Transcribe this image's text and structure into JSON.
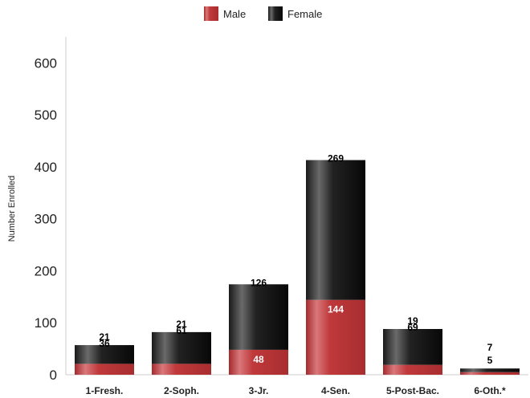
{
  "chart_data": {
    "type": "bar",
    "stacked": true,
    "categories": [
      "1-Fresh.",
      "2-Soph.",
      "3-Jr.",
      "4-Sen.",
      "5-Post-Bac.",
      "6-Oth.*"
    ],
    "series": [
      {
        "name": "Male",
        "values": [
          21,
          21,
          48,
          144,
          19,
          5
        ],
        "color": "#c0393b"
      },
      {
        "name": "Female",
        "values": [
          36,
          61,
          126,
          269,
          69,
          7
        ],
        "color": "#111111"
      }
    ],
    "title": "",
    "xlabel": "",
    "ylabel": "Number Enrolled",
    "ylim": [
      0,
      650
    ],
    "yticks": [
      0,
      100,
      200,
      300,
      400,
      500,
      600
    ],
    "grid": false,
    "legend_position": "top-center"
  }
}
